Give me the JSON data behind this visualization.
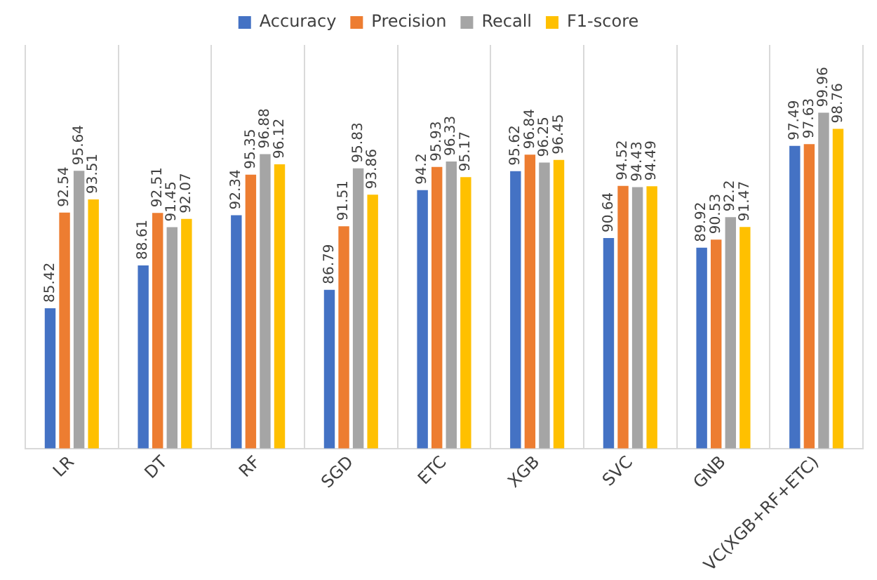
{
  "chart_data": {
    "type": "bar",
    "categories": [
      "LR",
      "DT",
      "RF",
      "SGD",
      "ETC",
      "XGB",
      "SVC",
      "GNB",
      "VC(XGB+RF+ETC)"
    ],
    "series": [
      {
        "name": "Accuracy",
        "color": "#4472c4",
        "values": [
          85.42,
          88.61,
          92.34,
          86.79,
          94.2,
          95.62,
          90.64,
          89.92,
          97.49
        ]
      },
      {
        "name": "Precision",
        "color": "#ed7d31",
        "values": [
          92.54,
          92.51,
          95.35,
          91.51,
          95.93,
          96.84,
          94.52,
          90.53,
          97.63
        ]
      },
      {
        "name": "Recall",
        "color": "#a5a5a5",
        "values": [
          95.64,
          91.45,
          96.88,
          95.83,
          96.33,
          96.25,
          94.43,
          92.2,
          99.96
        ]
      },
      {
        "name": "F1-score",
        "color": "#ffc000",
        "values": [
          93.51,
          92.07,
          96.12,
          93.86,
          95.17,
          96.45,
          94.49,
          91.47,
          98.76
        ]
      }
    ],
    "ylim": [
      75,
      105
    ],
    "tick_labels": "x",
    "grid": "x",
    "legend": "top",
    "data_labels": true
  }
}
